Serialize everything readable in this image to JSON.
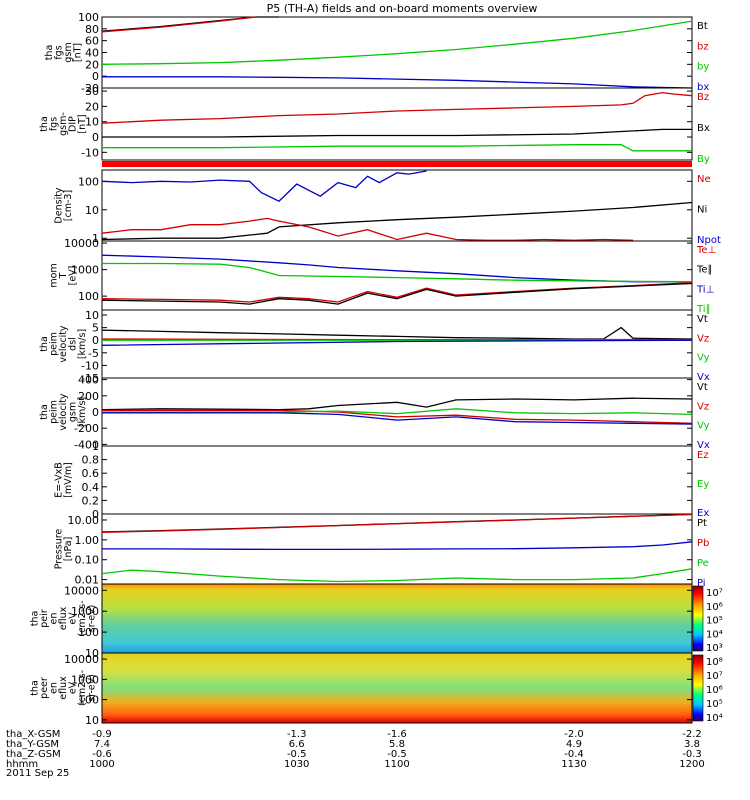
{
  "title": "P5 (TH-A) fields and on-board moments overview",
  "date_label": "2011 Sep 25",
  "colors": {
    "black": "#000000",
    "red": "#d00000",
    "green": "#00c800",
    "blue": "#0000c8",
    "redband": "#ff0000"
  },
  "chart_data": [
    {
      "type": "line",
      "ylabel": [
        "tha",
        "fgs",
        "gsm",
        "[nT]"
      ],
      "ylim": [
        -20,
        100
      ],
      "ticks": [
        100,
        80,
        60,
        40,
        20,
        0,
        -20
      ],
      "legend": [
        {
          "label": "Bt",
          "color": "black"
        },
        {
          "label": "bz",
          "color": "red"
        },
        {
          "label": "by",
          "color": "green"
        },
        {
          "label": "bx",
          "color": "blue"
        }
      ],
      "series": [
        {
          "name": "Bt",
          "color": "black",
          "x": [
            0,
            0.1,
            0.2,
            0.26,
            0.3
          ],
          "y": [
            76,
            84,
            94,
            102,
            108
          ]
        },
        {
          "name": "bz",
          "color": "red",
          "x": [
            0,
            0.1,
            0.2,
            0.26
          ],
          "y": [
            75,
            83,
            93,
            101
          ]
        },
        {
          "name": "by",
          "color": "green",
          "x": [
            0,
            0.1,
            0.2,
            0.3,
            0.4,
            0.5,
            0.6,
            0.7,
            0.8,
            0.9,
            1.0
          ],
          "y": [
            20,
            21,
            23,
            27,
            32,
            38,
            45,
            54,
            64,
            77,
            93
          ]
        },
        {
          "name": "bx",
          "color": "blue",
          "x": [
            0,
            0.1,
            0.2,
            0.3,
            0.4,
            0.5,
            0.6,
            0.7,
            0.8,
            0.9,
            1.0
          ],
          "y": [
            -1,
            -1,
            -1,
            -2,
            -3,
            -5,
            -7,
            -10,
            -13,
            -18,
            -24
          ]
        }
      ]
    },
    {
      "type": "line",
      "ylabel": [
        "tha",
        "fgs",
        "gsm-",
        "DIP",
        "[nT]"
      ],
      "ylim": [
        -15,
        32
      ],
      "ticks": [
        30,
        20,
        10,
        0,
        -10
      ],
      "legend": [
        {
          "label": "Bz",
          "color": "red"
        },
        {
          "label": "Bx",
          "color": "black"
        },
        {
          "label": "By",
          "color": "green"
        }
      ],
      "series": [
        {
          "name": "Bz",
          "color": "red",
          "x": [
            0,
            0.1,
            0.2,
            0.3,
            0.4,
            0.5,
            0.6,
            0.7,
            0.8,
            0.88,
            0.9,
            0.92,
            0.95,
            0.97,
            1.0
          ],
          "y": [
            9,
            11,
            12,
            14,
            15,
            17,
            18,
            19,
            20,
            21,
            22,
            27,
            29,
            28,
            27
          ]
        },
        {
          "name": "Bx",
          "color": "black",
          "x": [
            0,
            0.2,
            0.4,
            0.6,
            0.8,
            0.9,
            0.95,
            1.0
          ],
          "y": [
            0,
            0,
            1,
            1,
            2,
            4,
            5,
            5
          ]
        },
        {
          "name": "By",
          "color": "green",
          "x": [
            0,
            0.2,
            0.4,
            0.6,
            0.8,
            0.88,
            0.9,
            1.0
          ],
          "y": [
            -7,
            -7,
            -6,
            -6,
            -5,
            -5,
            -9,
            -9
          ]
        }
      ]
    },
    {
      "type": "line",
      "ylabel": [
        "Density",
        "[cm-3]"
      ],
      "ylim": [
        0.8,
        250
      ],
      "yscale": "log",
      "ticks": [
        100,
        10,
        1
      ],
      "legend": [
        {
          "label": "Ne",
          "color": "red"
        },
        {
          "label": "Ni",
          "color": "black"
        },
        {
          "label": "Npot",
          "color": "blue"
        }
      ],
      "series": [
        {
          "name": "Npot",
          "color": "blue",
          "x": [
            0,
            0.05,
            0.1,
            0.15,
            0.2,
            0.25,
            0.27,
            0.3,
            0.33,
            0.37,
            0.4,
            0.43,
            0.45,
            0.47,
            0.5,
            0.52,
            0.55
          ],
          "y": [
            100,
            90,
            100,
            95,
            110,
            100,
            40,
            20,
            80,
            30,
            90,
            60,
            150,
            90,
            200,
            180,
            230
          ]
        },
        {
          "name": "Ni",
          "color": "black",
          "x": [
            0,
            0.1,
            0.2,
            0.28,
            0.3,
            0.4,
            0.5,
            0.6,
            0.7,
            0.8,
            0.9,
            1.0
          ],
          "y": [
            0.9,
            1,
            1,
            1.5,
            2.5,
            3.5,
            4.5,
            5.5,
            7,
            9,
            12,
            18
          ]
        },
        {
          "name": "Ne",
          "color": "red",
          "x": [
            0,
            0.05,
            0.1,
            0.15,
            0.2,
            0.25,
            0.28,
            0.3,
            0.35,
            0.4,
            0.45,
            0.5,
            0.55,
            0.6,
            0.65,
            0.7,
            0.75,
            0.8,
            0.85,
            0.9
          ],
          "y": [
            1.5,
            2,
            2,
            3,
            3,
            4,
            5,
            4,
            2.5,
            1.2,
            2,
            0.9,
            1.5,
            0.9,
            0.85,
            0.85,
            0.9,
            0.85,
            0.9,
            0.85
          ]
        }
      ]
    },
    {
      "type": "line",
      "ylabel": [
        "mom",
        "T",
        "[eV]"
      ],
      "ylim": [
        30,
        12000
      ],
      "yscale": "log",
      "ticks": [
        10000,
        1000,
        100
      ],
      "legend": [
        {
          "label": "Te⊥",
          "color": "red"
        },
        {
          "label": "Te∥",
          "color": "black"
        },
        {
          "label": "Ti⊥",
          "color": "blue"
        },
        {
          "label": "Ti∥",
          "color": "green"
        }
      ],
      "series": [
        {
          "name": "Ti⊥",
          "color": "blue",
          "x": [
            0,
            0.1,
            0.2,
            0.3,
            0.35,
            0.4,
            0.5,
            0.6,
            0.7,
            0.8,
            0.9,
            1.0
          ],
          "y": [
            3500,
            3000,
            2500,
            1800,
            1500,
            1200,
            900,
            700,
            500,
            400,
            350,
            350
          ]
        },
        {
          "name": "Ti∥",
          "color": "green",
          "x": [
            0,
            0.1,
            0.2,
            0.25,
            0.28,
            0.3,
            0.4,
            0.5,
            0.6,
            0.7,
            0.8,
            0.9,
            1.0
          ],
          "y": [
            1700,
            1700,
            1600,
            1200,
            800,
            600,
            550,
            500,
            450,
            400,
            380,
            360,
            350
          ]
        },
        {
          "name": "Te⊥",
          "color": "red",
          "x": [
            0,
            0.1,
            0.2,
            0.25,
            0.3,
            0.35,
            0.4,
            0.45,
            0.5,
            0.55,
            0.6,
            0.7,
            0.8,
            0.9,
            1.0
          ],
          "y": [
            80,
            75,
            70,
            60,
            90,
            80,
            60,
            150,
            90,
            200,
            110,
            150,
            200,
            250,
            320
          ]
        },
        {
          "name": "Te∥",
          "color": "black",
          "x": [
            0,
            0.1,
            0.2,
            0.25,
            0.3,
            0.35,
            0.4,
            0.45,
            0.5,
            0.55,
            0.6,
            0.7,
            0.8,
            0.9,
            1.0
          ],
          "y": [
            70,
            65,
            60,
            50,
            80,
            70,
            50,
            130,
            80,
            180,
            100,
            140,
            190,
            240,
            300
          ]
        }
      ]
    },
    {
      "type": "line",
      "ylabel": [
        "tha",
        "peim",
        "velocity",
        "dsl",
        "[km/s]"
      ],
      "ylim": [
        -15,
        12
      ],
      "ticks": [
        10,
        5,
        0,
        -5,
        -10,
        -15
      ],
      "legend": [
        {
          "label": "Vt",
          "color": "black"
        },
        {
          "label": "Vz",
          "color": "red"
        },
        {
          "label": "Vy",
          "color": "green"
        },
        {
          "label": "Vx",
          "color": "blue"
        }
      ],
      "series": [
        {
          "name": "Vt",
          "color": "black",
          "x": [
            0,
            0.1,
            0.2,
            0.3,
            0.4,
            0.5,
            0.6,
            0.7,
            0.8,
            0.85,
            0.88,
            0.9,
            1.0
          ],
          "y": [
            4,
            3.5,
            3,
            2.5,
            2,
            1.5,
            1,
            0.8,
            0.5,
            0.5,
            5,
            0.8,
            0.5
          ]
        },
        {
          "name": "Vz",
          "color": "red",
          "x": [
            0,
            0.5,
            1.0
          ],
          "y": [
            0.5,
            0.2,
            0.3
          ]
        },
        {
          "name": "Vy",
          "color": "green",
          "x": [
            0,
            0.5,
            1.0
          ],
          "y": [
            0,
            0,
            0
          ]
        },
        {
          "name": "Vx",
          "color": "blue",
          "x": [
            0,
            0.5,
            1.0
          ],
          "y": [
            -2,
            -0.5,
            0
          ]
        }
      ]
    },
    {
      "type": "line",
      "ylabel": [
        "tha",
        "peim",
        "velocity",
        "gsm",
        "[km/s]"
      ],
      "ylim": [
        -420,
        420
      ],
      "ticks": [
        400,
        200,
        0,
        -200,
        -400
      ],
      "legend": [
        {
          "label": "Vt",
          "color": "black"
        },
        {
          "label": "Vz",
          "color": "red"
        },
        {
          "label": "Vy",
          "color": "green"
        },
        {
          "label": "Vx",
          "color": "blue"
        }
      ],
      "series": [
        {
          "name": "Vt",
          "color": "black",
          "x": [
            0,
            0.1,
            0.2,
            0.3,
            0.35,
            0.4,
            0.45,
            0.5,
            0.55,
            0.6,
            0.7,
            0.8,
            0.9,
            1.0
          ],
          "y": [
            30,
            40,
            35,
            30,
            40,
            80,
            100,
            120,
            60,
            150,
            160,
            150,
            170,
            160
          ]
        },
        {
          "name": "Vz",
          "color": "red",
          "x": [
            0,
            0.3,
            0.4,
            0.5,
            0.6,
            0.7,
            0.8,
            0.9,
            1.0
          ],
          "y": [
            20,
            20,
            0,
            -60,
            -40,
            -90,
            -100,
            -120,
            -140
          ]
        },
        {
          "name": "Vy",
          "color": "green",
          "x": [
            0,
            0.3,
            0.4,
            0.5,
            0.6,
            0.7,
            0.8,
            0.9,
            1.0
          ],
          "y": [
            0,
            0,
            10,
            -20,
            40,
            -10,
            -20,
            -10,
            -30
          ]
        },
        {
          "name": "Vx",
          "color": "blue",
          "x": [
            0,
            0.3,
            0.4,
            0.5,
            0.6,
            0.7,
            0.8,
            0.9,
            1.0
          ],
          "y": [
            -10,
            -10,
            -30,
            -100,
            -60,
            -120,
            -130,
            -140,
            -150
          ]
        }
      ]
    },
    {
      "type": "line",
      "ylabel": [
        "E=-VxB",
        "[mV/m]"
      ],
      "ylim": [
        0,
        1.0
      ],
      "ticks": [
        1.0,
        0.8,
        0.6,
        0.4,
        0.2,
        0.0
      ],
      "legend": [
        {
          "label": "Ez",
          "color": "red"
        },
        {
          "label": "Ey",
          "color": "green"
        },
        {
          "label": "Ex",
          "color": "blue"
        }
      ],
      "series": []
    },
    {
      "type": "line",
      "ylabel": [
        "Pressure",
        "[nPa]"
      ],
      "ylim": [
        0.006,
        20
      ],
      "yscale": "log",
      "ticks_text": [
        "10.00",
        "1.00",
        "0.10",
        "0.01"
      ],
      "ticks": [
        10,
        1,
        0.1,
        0.01
      ],
      "legend": [
        {
          "label": "Pt",
          "color": "black"
        },
        {
          "label": "Pb",
          "color": "red"
        },
        {
          "label": "Pe",
          "color": "green"
        },
        {
          "label": "Pi",
          "color": "blue"
        }
      ],
      "series": [
        {
          "name": "Pt",
          "color": "black",
          "x": [
            0,
            0.1,
            0.2,
            0.3,
            0.4,
            0.5,
            0.6,
            0.7,
            0.8,
            0.9,
            1.0
          ],
          "y": [
            2.5,
            2.9,
            3.5,
            4.3,
            5.3,
            6.6,
            8.2,
            10,
            12.5,
            15.5,
            19
          ]
        },
        {
          "name": "Pb",
          "color": "red",
          "x": [
            0,
            0.1,
            0.2,
            0.3,
            0.4,
            0.5,
            0.6,
            0.7,
            0.8,
            0.9,
            1.0
          ],
          "y": [
            2.4,
            2.8,
            3.4,
            4.2,
            5.2,
            6.5,
            8.1,
            9.9,
            12.4,
            15.4,
            18.8
          ]
        },
        {
          "name": "Pi",
          "color": "blue",
          "x": [
            0,
            0.1,
            0.2,
            0.3,
            0.4,
            0.5,
            0.6,
            0.7,
            0.8,
            0.9,
            0.95,
            1.0
          ],
          "y": [
            0.35,
            0.35,
            0.34,
            0.33,
            0.33,
            0.34,
            0.35,
            0.36,
            0.4,
            0.45,
            0.55,
            0.8
          ]
        },
        {
          "name": "Pe",
          "color": "green",
          "x": [
            0,
            0.05,
            0.1,
            0.2,
            0.3,
            0.4,
            0.5,
            0.6,
            0.7,
            0.8,
            0.9,
            0.95,
            1.0
          ],
          "y": [
            0.02,
            0.03,
            0.025,
            0.015,
            0.01,
            0.008,
            0.009,
            0.012,
            0.01,
            0.01,
            0.012,
            0.02,
            0.035
          ]
        }
      ]
    },
    {
      "type": "heatmap",
      "ylabel": [
        "tha",
        "peir",
        "en",
        "eflux",
        "eV",
        "(cm2-s-",
        "sr-eV)"
      ],
      "ylim": [
        10,
        20000
      ],
      "yscale": "log",
      "ticks": [
        10000,
        1000,
        100,
        10
      ],
      "colorbar_ticks": [
        "10⁷",
        "10⁶",
        "10⁵",
        "10⁴",
        "10³"
      ]
    },
    {
      "type": "heatmap",
      "ylabel": [
        "tha",
        "peer",
        "en",
        "eflux",
        "eV",
        "(cm2-s-",
        "sr-eV)"
      ],
      "ylim": [
        7,
        20000
      ],
      "yscale": "log",
      "ticks": [
        10000,
        1000,
        100,
        10
      ],
      "colorbar_ticks": [
        "10⁸",
        "10⁷",
        "10⁶",
        "10⁵",
        "10⁴"
      ]
    }
  ],
  "xaxis": {
    "rows": [
      {
        "label": "tha_X-GSM",
        "values": [
          "-0.9",
          "-1.3",
          "-1.6",
          "-2.0",
          "-2.2"
        ]
      },
      {
        "label": "tha_Y-GSM",
        "values": [
          "7.4",
          "6.6",
          "5.8",
          "4.9",
          "3.8"
        ]
      },
      {
        "label": "tha_Z-GSM",
        "values": [
          "-0.6",
          "-0.5",
          "-0.5",
          "-0.4",
          "-0.3"
        ]
      },
      {
        "label": "hhmm",
        "values": [
          "1000",
          "1030",
          "1100",
          "1130",
          "1200"
        ]
      }
    ]
  }
}
